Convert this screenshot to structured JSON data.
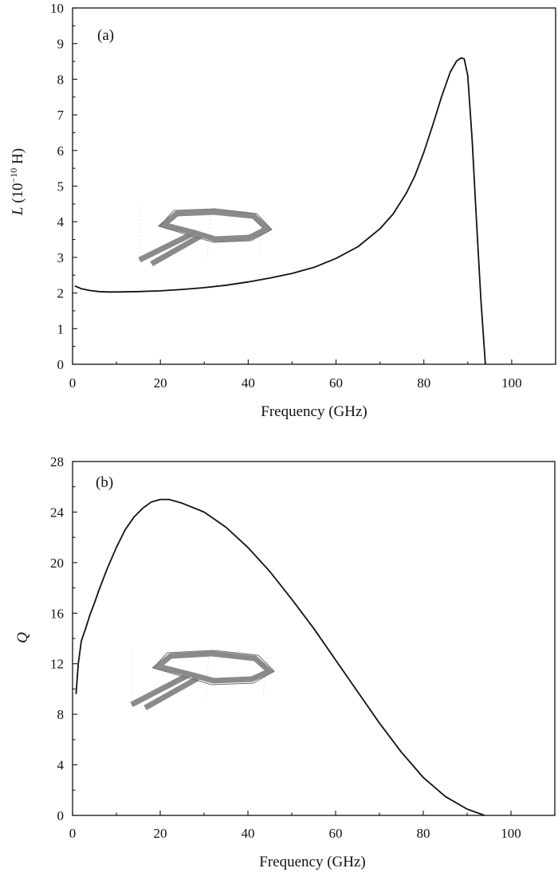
{
  "chart_data": [
    {
      "type": "line",
      "panel_label": "(a)",
      "xlabel": "Frequency (GHz)",
      "ylabel": {
        "var": "L",
        "text": " (10",
        "exp": "−10",
        "unit": " H)"
      },
      "xlim": [
        0,
        110
      ],
      "ylim": [
        0,
        10
      ],
      "xticks": [
        0,
        20,
        40,
        60,
        80,
        100
      ],
      "yticks": [
        0,
        1,
        2,
        3,
        4,
        5,
        6,
        7,
        8,
        9,
        10
      ],
      "grid": false,
      "inset": "octagonal-spiral-inductor-icon",
      "series": [
        {
          "x": [
            0.5,
            2,
            4,
            6,
            8,
            10,
            15,
            20,
            25,
            30,
            35,
            40,
            45,
            50,
            55,
            60,
            65,
            70,
            73,
            76,
            78,
            80,
            82,
            84,
            86,
            87.5,
            88.5,
            89.2,
            90,
            91,
            92,
            93,
            94
          ],
          "y": [
            2.2,
            2.12,
            2.07,
            2.04,
            2.03,
            2.03,
            2.04,
            2.06,
            2.1,
            2.15,
            2.22,
            2.31,
            2.42,
            2.55,
            2.72,
            2.97,
            3.3,
            3.8,
            4.22,
            4.8,
            5.3,
            5.95,
            6.7,
            7.5,
            8.2,
            8.52,
            8.6,
            8.57,
            8.1,
            6.3,
            4.0,
            1.8,
            0
          ]
        }
      ]
    },
    {
      "type": "line",
      "panel_label": "(b)",
      "xlabel": "Frequency (GHz)",
      "ylabel": {
        "var": "Q"
      },
      "xlim": [
        0,
        110
      ],
      "ylim": [
        0,
        28
      ],
      "xticks": [
        0,
        20,
        40,
        60,
        80,
        100
      ],
      "yticks": [
        0,
        4,
        8,
        12,
        16,
        20,
        24,
        28
      ],
      "grid": false,
      "inset": "octagonal-spiral-inductor-icon",
      "series": [
        {
          "x": [
            0.8,
            1.3,
            2,
            3,
            4,
            5,
            6,
            8,
            10,
            12,
            14,
            16,
            18,
            20,
            22,
            25,
            30,
            35,
            40,
            45,
            50,
            55,
            60,
            65,
            70,
            75,
            80,
            85,
            90,
            94
          ],
          "y": [
            9.6,
            12,
            13.8,
            14.8,
            15.9,
            16.8,
            17.8,
            19.6,
            21.2,
            22.6,
            23.6,
            24.3,
            24.8,
            25.0,
            25.0,
            24.7,
            24.0,
            22.8,
            21.2,
            19.3,
            17.1,
            14.8,
            12.3,
            9.8,
            7.3,
            5.0,
            3.0,
            1.5,
            0.5,
            0
          ]
        }
      ]
    }
  ]
}
